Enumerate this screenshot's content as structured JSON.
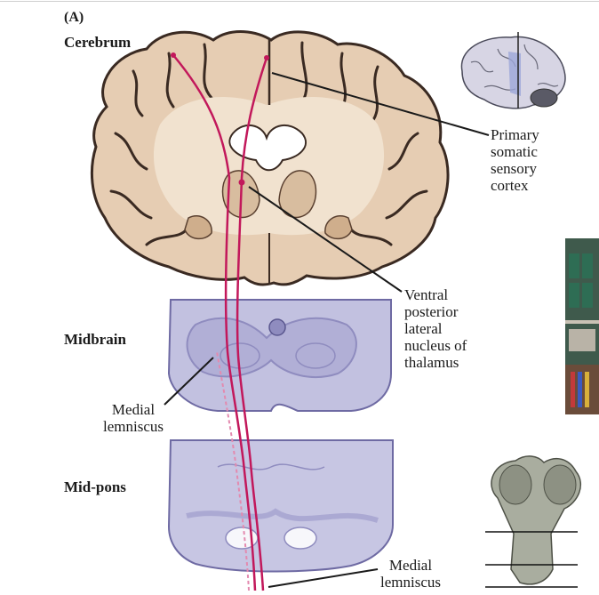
{
  "panel": {
    "letter": "(A)"
  },
  "regions": {
    "cerebrum": "Cerebrum",
    "midbrain": "Midbrain",
    "midpons": "Mid-pons"
  },
  "callouts": {
    "primary_cortex": [
      "Primary",
      "somatic",
      "sensory",
      "cortex"
    ],
    "vpl": [
      "Ventral",
      "posterior",
      "lateral",
      "nucleus of",
      "thalamus"
    ],
    "medial_lemniscus_mid": [
      "Medial",
      "lemniscus"
    ],
    "medial_lemniscus_pons": [
      "Medial",
      "lemniscus"
    ]
  },
  "colors": {
    "brain_fill": "#e6cdb3",
    "brain_outline": "#3a2a22",
    "brain_inner": "#f1e2cf",
    "section_fill": "#c2c1e0",
    "section_dark": "#8f8cbf",
    "pathway": "#c2185b",
    "pathway_light": "#e38aaf"
  }
}
